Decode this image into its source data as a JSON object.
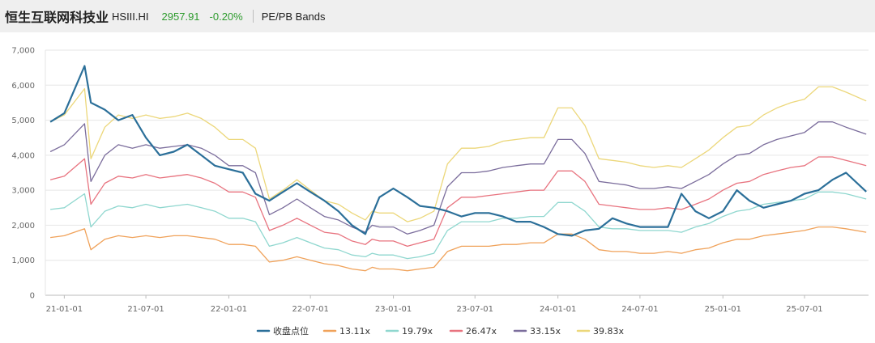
{
  "header": {
    "name": "恒生互联网科技业",
    "code": "HSIII.HI",
    "price": "2957.91",
    "change": "-0.20%",
    "bands_label": "PE/PB Bands"
  },
  "colors": {
    "close": "#2b6f99",
    "b1311": "#f0a25a",
    "b1979": "#8fd7cf",
    "b2647": "#e8737f",
    "b3315": "#7b6d9c",
    "b3983": "#ecd77a",
    "price_positive": "#2e9b2e"
  },
  "chart_data": {
    "type": "line",
    "title": "",
    "xlabel": "",
    "ylabel": "",
    "ylim": [
      0,
      7000
    ],
    "yticks": [
      "0",
      "1,000",
      "2,000",
      "3,000",
      "4,000",
      "5,000",
      "6,000",
      "7,000"
    ],
    "xticks": [
      "21-01-01",
      "21-07-01",
      "22-01-01",
      "22-07-01",
      "23-01-01",
      "23-07-01",
      "24-01-01",
      "24-07-01",
      "25-01-01",
      "25-07-01"
    ],
    "x_range": [
      "2020-11-20",
      "2025-11-20"
    ],
    "grid": "horizontal",
    "legend_position": "bottom",
    "x": [
      "2020-12-01",
      "2021-01-01",
      "2021-02-15",
      "2021-03-01",
      "2021-04-01",
      "2021-05-01",
      "2021-06-01",
      "2021-07-01",
      "2021-08-01",
      "2021-09-01",
      "2021-10-01",
      "2021-11-01",
      "2021-12-01",
      "2022-01-01",
      "2022-02-01",
      "2022-03-01",
      "2022-04-01",
      "2022-05-01",
      "2022-06-01",
      "2022-07-01",
      "2022-08-01",
      "2022-09-01",
      "2022-10-01",
      "2022-10-31",
      "2022-11-15",
      "2022-12-01",
      "2023-01-01",
      "2023-02-01",
      "2023-03-01",
      "2023-04-01",
      "2023-05-01",
      "2023-06-01",
      "2023-07-01",
      "2023-08-01",
      "2023-09-01",
      "2023-10-01",
      "2023-11-01",
      "2023-12-01",
      "2024-01-01",
      "2024-02-01",
      "2024-03-01",
      "2024-04-01",
      "2024-05-01",
      "2024-06-01",
      "2024-07-01",
      "2024-08-01",
      "2024-09-01",
      "2024-10-01",
      "2024-11-01",
      "2024-12-01",
      "2025-01-01",
      "2025-02-01",
      "2025-03-01",
      "2025-04-01",
      "2025-05-01",
      "2025-06-01",
      "2025-07-01",
      "2025-08-01",
      "2025-09-01",
      "2025-10-01",
      "2025-11-15"
    ],
    "series": [
      {
        "name": "收盘点位",
        "color_key": "close",
        "width": 2.2,
        "values": [
          4950,
          5200,
          6550,
          5500,
          5300,
          5000,
          5150,
          4500,
          4000,
          4100,
          4300,
          4000,
          3700,
          3600,
          3500,
          2900,
          2700,
          2950,
          3200,
          2950,
          2700,
          2400,
          2000,
          1750,
          2300,
          2800,
          3050,
          2800,
          2550,
          2500,
          2400,
          2250,
          2350,
          2350,
          2250,
          2100,
          2100,
          1950,
          1750,
          1700,
          1850,
          1900,
          2200,
          2050,
          1950,
          1950,
          1950,
          2900,
          2400,
          2200,
          2400,
          3000,
          2700,
          2500,
          2600,
          2700,
          2900,
          3000,
          3300,
          3500,
          2960
        ]
      },
      {
        "name": "13.11x",
        "color_key": "b1311",
        "width": 1.3,
        "values": [
          1650,
          1700,
          1900,
          1300,
          1600,
          1700,
          1650,
          1700,
          1650,
          1700,
          1700,
          1650,
          1600,
          1450,
          1450,
          1400,
          950,
          1000,
          1100,
          1000,
          900,
          850,
          750,
          700,
          800,
          750,
          750,
          700,
          750,
          800,
          1250,
          1400,
          1400,
          1400,
          1450,
          1450,
          1500,
          1500,
          1750,
          1750,
          1600,
          1300,
          1250,
          1250,
          1200,
          1200,
          1250,
          1200,
          1300,
          1350,
          1500,
          1600,
          1600,
          1700,
          1750,
          1800,
          1850,
          1950,
          1950,
          1900,
          1800
        ]
      },
      {
        "name": "19.79x",
        "color_key": "b1979",
        "width": 1.3,
        "values": [
          2450,
          2500,
          2900,
          1950,
          2400,
          2550,
          2500,
          2600,
          2500,
          2550,
          2600,
          2500,
          2400,
          2200,
          2200,
          2100,
          1400,
          1500,
          1650,
          1500,
          1350,
          1300,
          1150,
          1100,
          1200,
          1150,
          1150,
          1050,
          1100,
          1200,
          1850,
          2100,
          2100,
          2100,
          2200,
          2200,
          2250,
          2250,
          2650,
          2650,
          2400,
          1950,
          1900,
          1900,
          1850,
          1850,
          1850,
          1800,
          1950,
          2050,
          2250,
          2400,
          2450,
          2600,
          2650,
          2700,
          2750,
          2950,
          2950,
          2900,
          2750
        ]
      },
      {
        "name": "26.47x",
        "color_key": "b2647",
        "width": 1.3,
        "values": [
          3300,
          3400,
          3900,
          2600,
          3200,
          3400,
          3350,
          3450,
          3350,
          3400,
          3450,
          3350,
          3200,
          2950,
          2950,
          2800,
          1850,
          2000,
          2200,
          2000,
          1800,
          1750,
          1550,
          1450,
          1600,
          1550,
          1550,
          1400,
          1500,
          1600,
          2500,
          2800,
          2800,
          2850,
          2900,
          2950,
          3000,
          3000,
          3550,
          3550,
          3250,
          2600,
          2550,
          2500,
          2450,
          2450,
          2500,
          2450,
          2600,
          2750,
          3000,
          3200,
          3250,
          3450,
          3550,
          3650,
          3700,
          3950,
          3950,
          3850,
          3700
        ]
      },
      {
        "name": "33.15x",
        "color_key": "b3315",
        "width": 1.3,
        "values": [
          4100,
          4300,
          4900,
          3250,
          4000,
          4300,
          4200,
          4300,
          4200,
          4250,
          4300,
          4200,
          4000,
          3700,
          3700,
          3500,
          2300,
          2500,
          2750,
          2500,
          2250,
          2150,
          1950,
          1800,
          2000,
          1950,
          1950,
          1750,
          1850,
          2000,
          3100,
          3500,
          3500,
          3550,
          3650,
          3700,
          3750,
          3750,
          4450,
          4450,
          4050,
          3250,
          3200,
          3150,
          3050,
          3050,
          3100,
          3050,
          3250,
          3450,
          3750,
          4000,
          4050,
          4300,
          4450,
          4550,
          4650,
          4950,
          4950,
          4800,
          4600
        ]
      },
      {
        "name": "39.83x",
        "color_key": "b3983",
        "width": 1.3,
        "values": [
          4950,
          5150,
          5900,
          3900,
          4800,
          5150,
          5050,
          5150,
          5050,
          5100,
          5200,
          5050,
          4800,
          4450,
          4450,
          4200,
          2750,
          3000,
          3300,
          3000,
          2700,
          2600,
          2350,
          2150,
          2400,
          2350,
          2350,
          2100,
          2200,
          2400,
          3750,
          4200,
          4200,
          4250,
          4400,
          4450,
          4500,
          4500,
          5350,
          5350,
          4850,
          3900,
          3850,
          3800,
          3700,
          3650,
          3700,
          3650,
          3900,
          4150,
          4500,
          4800,
          4850,
          5150,
          5350,
          5500,
          5600,
          5950,
          5950,
          5800,
          5550
        ]
      }
    ]
  }
}
